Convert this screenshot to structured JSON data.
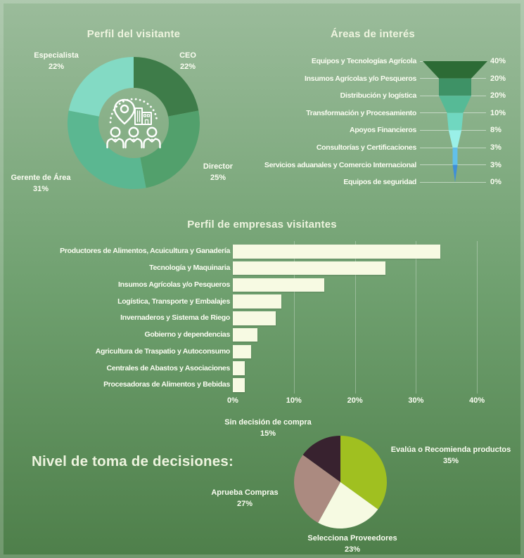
{
  "colors": {
    "background_top": "#9bbc9b",
    "background_mid": "#6fa06f",
    "background_bottom": "#4e7f4a",
    "text": "#fbfdf2",
    "title_text": "#eef4df",
    "connector_line": "rgba(255,255,255,0.5)",
    "gridline": "rgba(255,255,255,0.30)"
  },
  "icons": {
    "donut_center": "visitors-pin-building-people-icon"
  },
  "chart_data": [
    {
      "type": "pie",
      "variant": "donut",
      "title": "Perfil del visitante",
      "labels": [
        "CEO",
        "Director",
        "Gerente de Área",
        "Especialista"
      ],
      "values": [
        22,
        25,
        31,
        22
      ],
      "value_labels": [
        "22%",
        "25%",
        "31%",
        "22%"
      ],
      "colors": [
        "#3e7c49",
        "#52a06c",
        "#5bb791",
        "#83dac4"
      ],
      "start_angle_deg": 0,
      "direction": "clockwise",
      "legend_position": "around-slices"
    },
    {
      "type": "funnel",
      "title": "Áreas de interés",
      "categories": [
        "Equipos y Tecnologías Agrícola",
        "Insumos Agrícolas y/o Pesqueros",
        "Distribución y logística",
        "Transformación y Procesamiento",
        "Apoyos Financieros",
        "Consultorías y Certificaciones",
        "Servicios aduanales y Comercio Internacional",
        "Equipos de seguridad"
      ],
      "values": [
        40,
        20,
        20,
        10,
        8,
        3,
        3,
        0
      ],
      "value_labels": [
        "40%",
        "20%",
        "20%",
        "10%",
        "8%",
        "3%",
        "3%",
        "0%"
      ],
      "colors": [
        "#2c6b35",
        "#3e9266",
        "#56ba96",
        "#70d7c0",
        "#9af0e8",
        "#62c0ea",
        "#3f8fd8"
      ],
      "labels_position": "left",
      "values_position": "right"
    },
    {
      "type": "bar",
      "orientation": "horizontal",
      "title": "Perfil de empresas visitantes",
      "categories": [
        "Productores de Alimentos, Acuicultura y Ganadería",
        "Tecnología y Maquinaria",
        "Insumos Agrícolas y/o Pesqueros",
        "Logística, Transporte y Embalajes",
        "Invernaderos y Sistema de Riego",
        "Gobierno y dependencias",
        "Agricultura de Traspatio y Autoconsumo",
        "Centrales de Abastos y Asociaciones",
        "Procesadoras de Alimentos y Bebidas"
      ],
      "values": [
        34,
        25,
        15,
        8,
        7,
        4,
        3,
        2,
        2
      ],
      "bar_color": "#f7fae3",
      "xlabel": "",
      "ylabel": "",
      "xlim": [
        0,
        43
      ],
      "xticks": [
        "0%",
        "10%",
        "20%",
        "30%",
        "40%"
      ],
      "xtick_values": [
        0,
        10,
        20,
        30,
        40
      ],
      "grid": "vertical"
    },
    {
      "type": "pie",
      "title": "Nivel de toma de decisiones:",
      "labels": [
        "Evalúa o Recomienda productos",
        "Selecciona Proveedores",
        "Aprueba Compras",
        "Sin decisión de compra"
      ],
      "values": [
        35,
        23,
        27,
        15
      ],
      "value_labels": [
        "35%",
        "23%",
        "27%",
        "15%"
      ],
      "colors": [
        "#a0c020",
        "#f6fae2",
        "#ab8a80",
        "#38222f"
      ],
      "start_angle_deg": 0,
      "direction": "clockwise",
      "legend_position": "around-slices"
    }
  ]
}
